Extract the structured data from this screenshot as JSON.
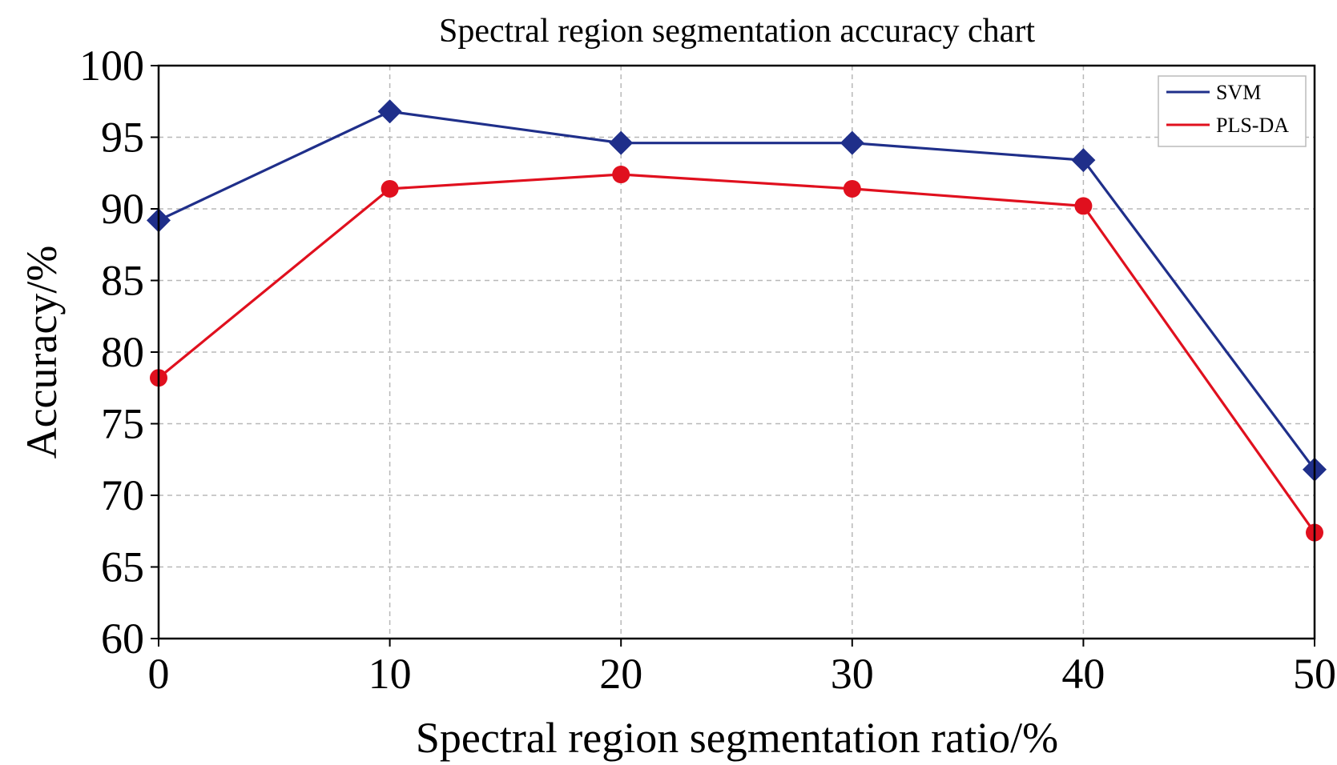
{
  "chart_data": {
    "type": "line",
    "title": "Spectral region segmentation accuracy chart",
    "xlabel": "Spectral region segmentation ratio/%",
    "ylabel": "Accuracy/%",
    "x": [
      0,
      10,
      20,
      30,
      40,
      50
    ],
    "xlim": [
      0,
      50
    ],
    "ylim": [
      60,
      100
    ],
    "x_ticks": [
      "0",
      "10",
      "20",
      "30",
      "40",
      "50"
    ],
    "y_ticks": [
      "60",
      "65",
      "70",
      "75",
      "80",
      "85",
      "90",
      "95",
      "100"
    ],
    "grid": true,
    "legend_position": "top-right",
    "series": [
      {
        "name": "SVM",
        "color": "#1f2f8a",
        "marker": "diamond",
        "values": [
          89.2,
          96.8,
          94.6,
          94.6,
          93.4,
          71.8
        ]
      },
      {
        "name": "PLS-DA",
        "color": "#e0101e",
        "marker": "circle",
        "values": [
          78.2,
          91.4,
          92.4,
          91.4,
          90.2,
          67.4
        ]
      }
    ]
  }
}
